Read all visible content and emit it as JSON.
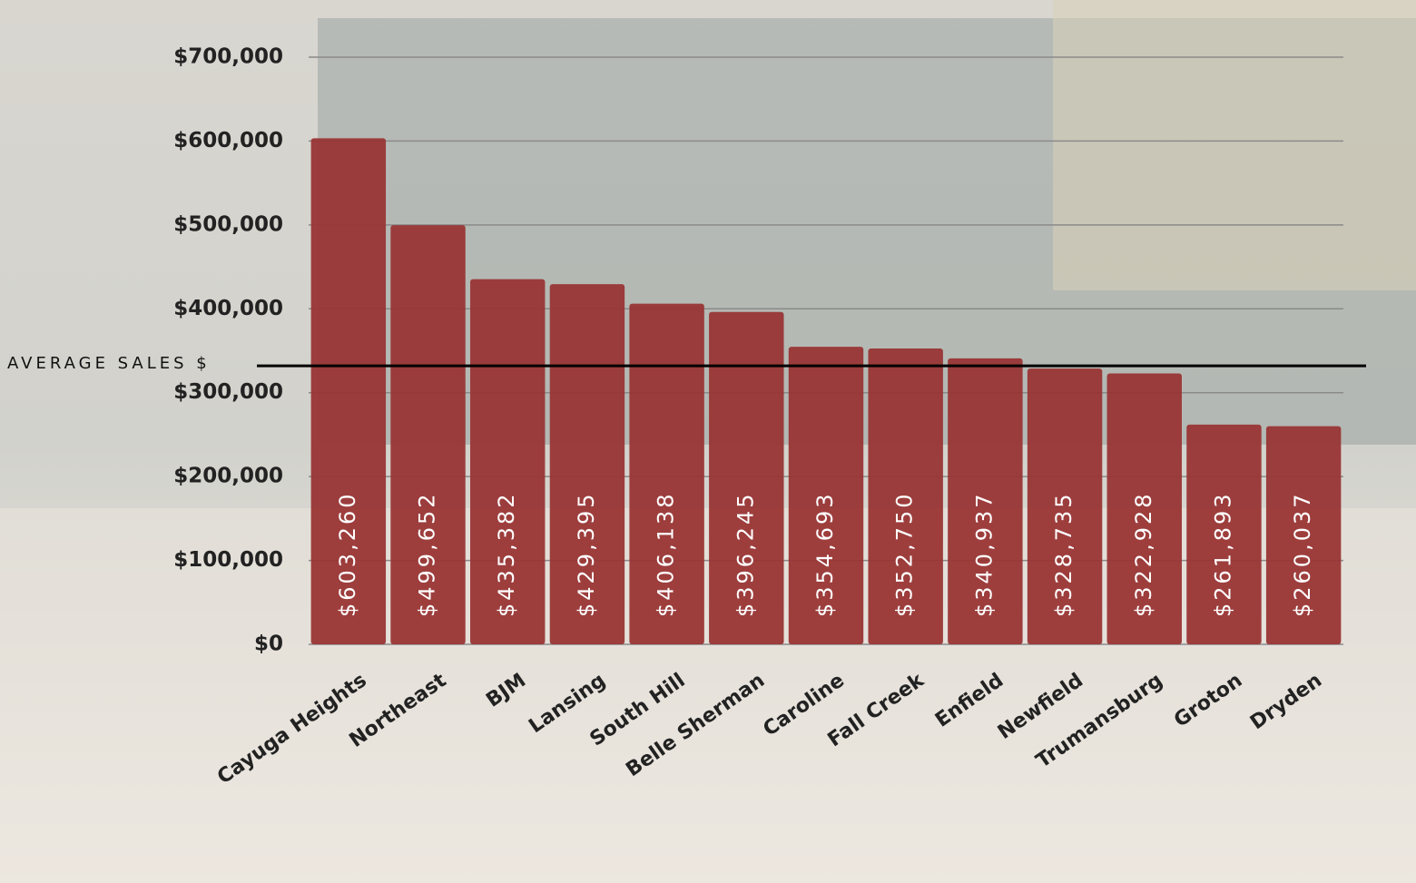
{
  "chart_data": {
    "type": "bar",
    "categories": [
      "Cayuga Heights",
      "Northeast",
      "BJM",
      "Lansing",
      "South Hill",
      "Belle Sherman",
      "Caroline",
      "Fall Creek",
      "Enfield",
      "Newfield",
      "Trumansburg",
      "Groton",
      "Dryden"
    ],
    "values": [
      603260,
      499652,
      435382,
      429395,
      406138,
      396245,
      354693,
      352750,
      340937,
      328735,
      322928,
      261893,
      260037
    ],
    "value_labels": [
      "$603,260",
      "$499,652",
      "$435,382",
      "$429,395",
      "$406,138",
      "$396,245",
      "$354,693",
      "$352,750",
      "$340,937",
      "$328,735",
      "$322,928",
      "$261,893",
      "$260,037"
    ],
    "color": "#993535",
    "ylim": [
      0,
      700000
    ],
    "yticks": [
      {
        "value": 0,
        "label": "$0"
      },
      {
        "value": 100000,
        "label": "$100,000"
      },
      {
        "value": 200000,
        "label": "$200,000"
      },
      {
        "value": 300000,
        "label": "$300,000"
      },
      {
        "value": 400000,
        "label": "$400,000"
      },
      {
        "value": 500000,
        "label": "$500,000"
      },
      {
        "value": 600000,
        "label": "$600,000"
      },
      {
        "value": 700000,
        "label": "$700,000"
      }
    ],
    "grid": true,
    "reference_line": {
      "label": "AVERAGE SALES $",
      "value": 332000,
      "color": "#000000"
    }
  }
}
